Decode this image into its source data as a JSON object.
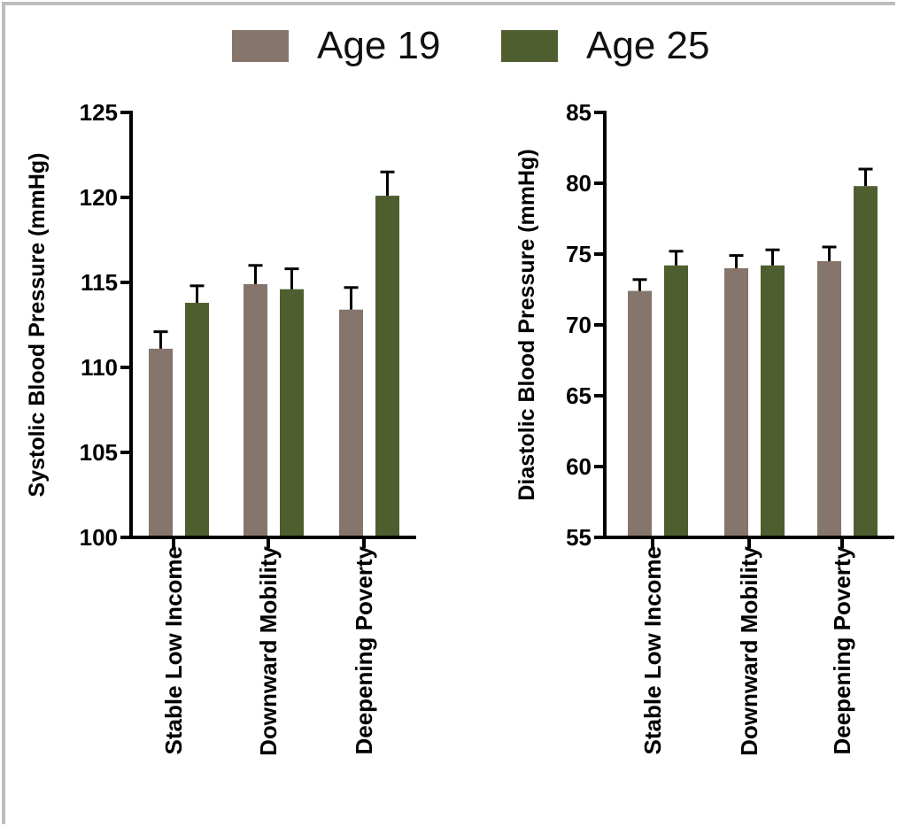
{
  "legend": {
    "items": [
      {
        "label": "Age 19",
        "color": "#85756b"
      },
      {
        "label": "Age 25",
        "color": "#4f5e2f"
      }
    ]
  },
  "chart_data": [
    {
      "type": "bar",
      "title": "",
      "xlabel": "",
      "ylabel": "Systolic Blood Pressure (mmHg)",
      "categories": [
        "Stable Low Income",
        "Downward Mobility",
        "Deepening Poverty"
      ],
      "ylim": [
        100,
        125
      ],
      "yticks": [
        100,
        105,
        110,
        115,
        120,
        125
      ],
      "series": [
        {
          "name": "Age 19",
          "color": "#85756b",
          "values": [
            111.1,
            114.9,
            113.4
          ],
          "errors": [
            1.0,
            1.1,
            1.3
          ]
        },
        {
          "name": "Age 25",
          "color": "#4f5e2f",
          "values": [
            113.8,
            114.6,
            120.1
          ],
          "errors": [
            1.0,
            1.2,
            1.4
          ]
        }
      ],
      "grid": false,
      "legend_position": "top"
    },
    {
      "type": "bar",
      "title": "",
      "xlabel": "",
      "ylabel": "Diastolic Blood Pressure (mmHg)",
      "categories": [
        "Stable Low Income",
        "Downward Mobility",
        "Deepening Poverty"
      ],
      "ylim": [
        55,
        85
      ],
      "yticks": [
        55,
        60,
        65,
        70,
        75,
        80,
        85
      ],
      "series": [
        {
          "name": "Age 19",
          "color": "#85756b",
          "values": [
            72.4,
            74.0,
            74.5
          ],
          "errors": [
            0.8,
            0.9,
            1.0
          ]
        },
        {
          "name": "Age 25",
          "color": "#4f5e2f",
          "values": [
            74.2,
            74.2,
            79.8
          ],
          "errors": [
            1.0,
            1.1,
            1.2
          ]
        }
      ],
      "grid": false,
      "legend_position": "top"
    }
  ]
}
